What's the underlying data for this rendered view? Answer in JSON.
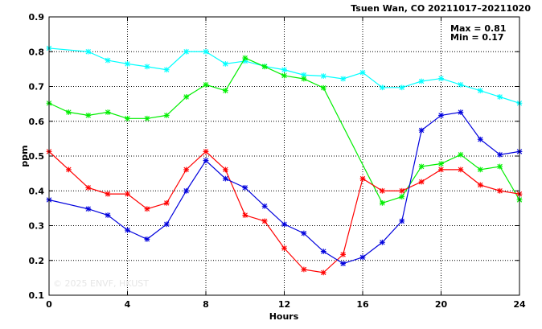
{
  "chart_data": {
    "type": "line",
    "title": "Tsuen Wan, CO 20211017–20211020",
    "xlabel": "Hours",
    "ylabel": "ppm",
    "xlim": [
      0,
      24
    ],
    "ylim": [
      0.1,
      0.9
    ],
    "xticks": [
      0,
      4,
      8,
      12,
      16,
      20,
      24
    ],
    "yticks": [
      0.1,
      0.2,
      0.3,
      0.4,
      0.5,
      0.6,
      0.7,
      0.8,
      0.9
    ],
    "grid": true,
    "annotations": {
      "max": "Max = 0.81",
      "min": "Min = 0.17"
    },
    "watermark": "© 2025 ENVF, HKUST",
    "x": [
      0,
      1,
      2,
      3,
      4,
      5,
      6,
      7,
      8,
      9,
      10,
      11,
      12,
      13,
      14,
      15,
      16,
      17,
      18,
      19,
      20,
      21,
      22,
      23,
      24
    ],
    "series": [
      {
        "color": "#00ffff",
        "values": [
          0.81,
          null,
          0.8,
          0.775,
          0.765,
          0.757,
          0.748,
          0.8,
          0.8,
          0.765,
          0.773,
          0.758,
          0.748,
          0.733,
          0.73,
          0.722,
          0.74,
          0.697,
          0.697,
          0.715,
          0.723,
          0.705,
          0.688,
          0.67,
          0.652
        ]
      },
      {
        "color": "#00ee00",
        "values": [
          0.652,
          0.626,
          0.617,
          0.626,
          0.608,
          0.608,
          0.617,
          0.67,
          0.705,
          0.688,
          0.782,
          0.757,
          0.731,
          0.722,
          0.696,
          null,
          null,
          0.365,
          0.383,
          0.47,
          0.478,
          0.504,
          0.461,
          0.47,
          0.374
        ]
      },
      {
        "color": "#ff0000",
        "values": [
          0.513,
          0.461,
          0.409,
          0.391,
          0.391,
          0.348,
          0.365,
          0.461,
          0.513,
          0.461,
          0.33,
          0.313,
          0.235,
          0.174,
          0.165,
          0.217,
          0.435,
          0.4,
          0.4,
          0.426,
          0.461,
          0.461,
          0.417,
          0.4,
          0.391
        ]
      },
      {
        "color": "#0000dd",
        "values": [
          0.374,
          null,
          0.348,
          0.33,
          0.287,
          0.261,
          0.304,
          0.4,
          0.487,
          0.435,
          0.409,
          0.356,
          0.304,
          0.278,
          0.226,
          0.191,
          0.209,
          0.252,
          0.313,
          0.574,
          0.617,
          0.626,
          0.548,
          0.504,
          0.513
        ]
      }
    ]
  }
}
